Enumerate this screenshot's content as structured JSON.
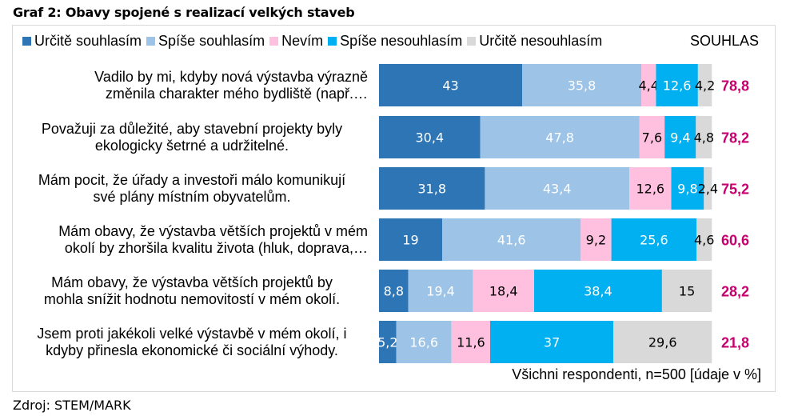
{
  "title": "Graf 2: Obavy spojené s realizací velkých staveb",
  "source": "Zdroj: STEM/MARK",
  "note": "Všichni respondenti, n=500 [údaje v %]",
  "legend_total_label": "SOUHLAS",
  "chart_data": {
    "type": "bar",
    "orientation": "horizontal",
    "stacked": true,
    "title": "Graf 2: Obavy spojené s realizací velkých staveb",
    "xlabel": "",
    "ylabel": "",
    "xlim": [
      0,
      100
    ],
    "unit": "%",
    "legend_position": "top",
    "grid": false,
    "categories": [
      "Vadilo by mi, kdyby nová výstavba výrazně změnila charakter mého bydliště (např.…",
      "Považuji za důležité, aby stavební projekty byly ekologicky šetrné a udržitelné.",
      "Mám pocit, že úřady a investoři málo komunikují své plány místním obyvatelům.",
      "Mám obavy, že výstavba větších projektů v mém okolí by zhoršila kvalitu života (hluk, doprava,…",
      "Mám obavy, že výstavba větších projektů by mohla snížit hodnotu nemovitostí v mém okolí.",
      "Jsem proti jakékoli velké výstavbě v mém okolí, i kdyby přinesla ekonomické či sociální výhody."
    ],
    "category_lines": [
      [
        "Vadilo by mi, kdyby nová výstavba výrazně",
        "změnila charakter mého bydliště (např.…"
      ],
      [
        "Považuji za důležité, aby stavební projekty byly",
        "ekologicky šetrné a udržitelné."
      ],
      [
        "Mám pocit, že úřady a investoři málo komunikují",
        "své plány místním obyvatelům."
      ],
      [
        "Mám obavy, že výstavba větších projektů v mém",
        "okolí by zhoršila kvalitu života (hluk, doprava,…"
      ],
      [
        "Mám obavy, že výstavba větších projektů by",
        "mohla snížit hodnotu nemovitostí v mém okolí."
      ],
      [
        "Jsem proti jakékoli velké výstavbě v mém okolí, i",
        "kdyby přinesla ekonomické či sociální výhody."
      ]
    ],
    "series": [
      {
        "name": "Určitě souhlasím",
        "color": "#2e75b6",
        "label_color": "#ffffff",
        "values": [
          43,
          30.4,
          31.8,
          19,
          8.8,
          5.2
        ]
      },
      {
        "name": "Spíše souhlasím",
        "color": "#9dc3e6",
        "label_color": "#ffffff",
        "values": [
          35.8,
          47.8,
          43.4,
          41.6,
          19.4,
          16.6
        ]
      },
      {
        "name": "Nevím",
        "color": "#ffc0e0",
        "label_color": "#000000",
        "values": [
          4.4,
          7.6,
          12.6,
          9.2,
          18.4,
          11.6
        ]
      },
      {
        "name": "Spíše nesouhlasím",
        "color": "#00b0f0",
        "label_color": "#ffffff",
        "values": [
          12.6,
          9.4,
          9.8,
          25.6,
          38.4,
          37
        ]
      },
      {
        "name": "Určitě nesouhlasím",
        "color": "#d9d9d9",
        "label_color": "#000000",
        "values": [
          4.2,
          4.8,
          2.4,
          4.6,
          15,
          29.6
        ]
      }
    ],
    "totals": {
      "name": "SOUHLAS",
      "color": "#c8006e",
      "values": [
        "78,8",
        "78,2",
        "75,2",
        "60,6",
        "28,2",
        "21,8"
      ]
    },
    "decimal_separator": ","
  }
}
